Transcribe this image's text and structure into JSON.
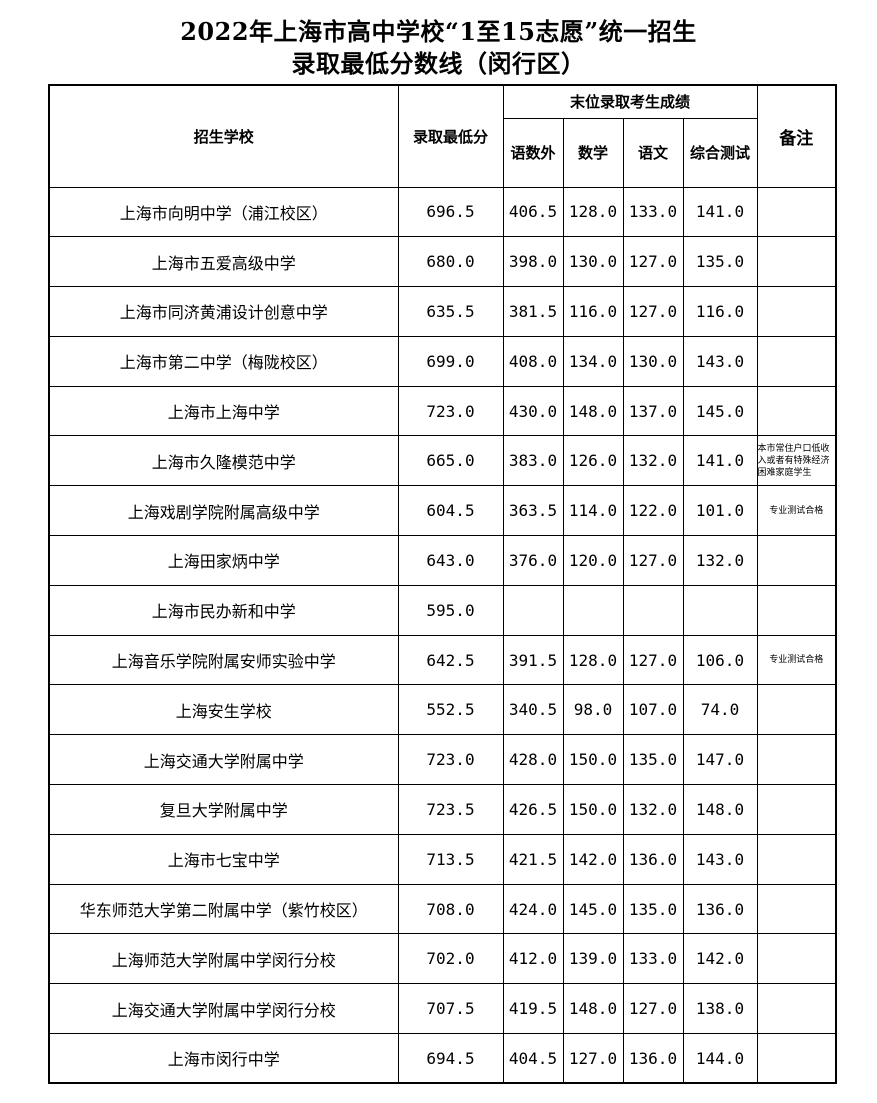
{
  "title_line1": "2022年上海市高中学校“1至15志愿”统一招生",
  "title_line2": "录取最低分数线（闵行区）",
  "headers": {
    "school": "招生学校",
    "min_score": "录取最低分",
    "last_group": "末位录取考生成绩",
    "ysw": "语数外",
    "math": "数学",
    "chinese": "语文",
    "comprehensive": "综合测试",
    "notes": "备注"
  },
  "rows": [
    [
      "上海市向明中学（浦江校区）",
      "696.5",
      "406.5",
      "128.0",
      "133.0",
      "141.0",
      ""
    ],
    [
      "上海市五爱高级中学",
      "680.0",
      "398.0",
      "130.0",
      "127.0",
      "135.0",
      ""
    ],
    [
      "上海市同济黄浦设计创意中学",
      "635.5",
      "381.5",
      "116.0",
      "127.0",
      "116.0",
      ""
    ],
    [
      "上海市第二中学（梅陇校区）",
      "699.0",
      "408.0",
      "134.0",
      "130.0",
      "143.0",
      ""
    ],
    [
      "上海市上海中学",
      "723.0",
      "430.0",
      "148.0",
      "137.0",
      "145.0",
      ""
    ],
    [
      "上海市久隆模范中学",
      "665.0",
      "383.0",
      "126.0",
      "132.0",
      "141.0",
      "本市常住户口低收入或者有特殊经济困难家庭学生"
    ],
    [
      "上海戏剧学院附属高级中学",
      "604.5",
      "363.5",
      "114.0",
      "122.0",
      "101.0",
      "专业测试合格"
    ],
    [
      "上海田家炳中学",
      "643.0",
      "376.0",
      "120.0",
      "127.0",
      "132.0",
      ""
    ],
    [
      "上海市民办新和中学",
      "595.0",
      "",
      "",
      "",
      "",
      ""
    ],
    [
      "上海音乐学院附属安师实验中学",
      "642.5",
      "391.5",
      "128.0",
      "127.0",
      "106.0",
      "专业测试合格"
    ],
    [
      "上海安生学校",
      "552.5",
      "340.5",
      "98.0",
      "107.0",
      "74.0",
      ""
    ],
    [
      "上海交通大学附属中学",
      "723.0",
      "428.0",
      "150.0",
      "135.0",
      "147.0",
      ""
    ],
    [
      "复旦大学附属中学",
      "723.5",
      "426.5",
      "150.0",
      "132.0",
      "148.0",
      ""
    ],
    [
      "上海市七宝中学",
      "713.5",
      "421.5",
      "142.0",
      "136.0",
      "143.0",
      ""
    ],
    [
      "华东师范大学第二附属中学（紫竹校区）",
      "708.0",
      "424.0",
      "145.0",
      "135.0",
      "136.0",
      ""
    ],
    [
      "上海师范大学附属中学闵行分校",
      "702.0",
      "412.0",
      "139.0",
      "133.0",
      "142.0",
      ""
    ],
    [
      "上海交通大学附属中学闵行分校",
      "707.5",
      "419.5",
      "148.0",
      "127.0",
      "138.0",
      ""
    ],
    [
      "上海市闵行中学",
      "694.5",
      "404.5",
      "127.0",
      "136.0",
      "144.0",
      ""
    ]
  ]
}
